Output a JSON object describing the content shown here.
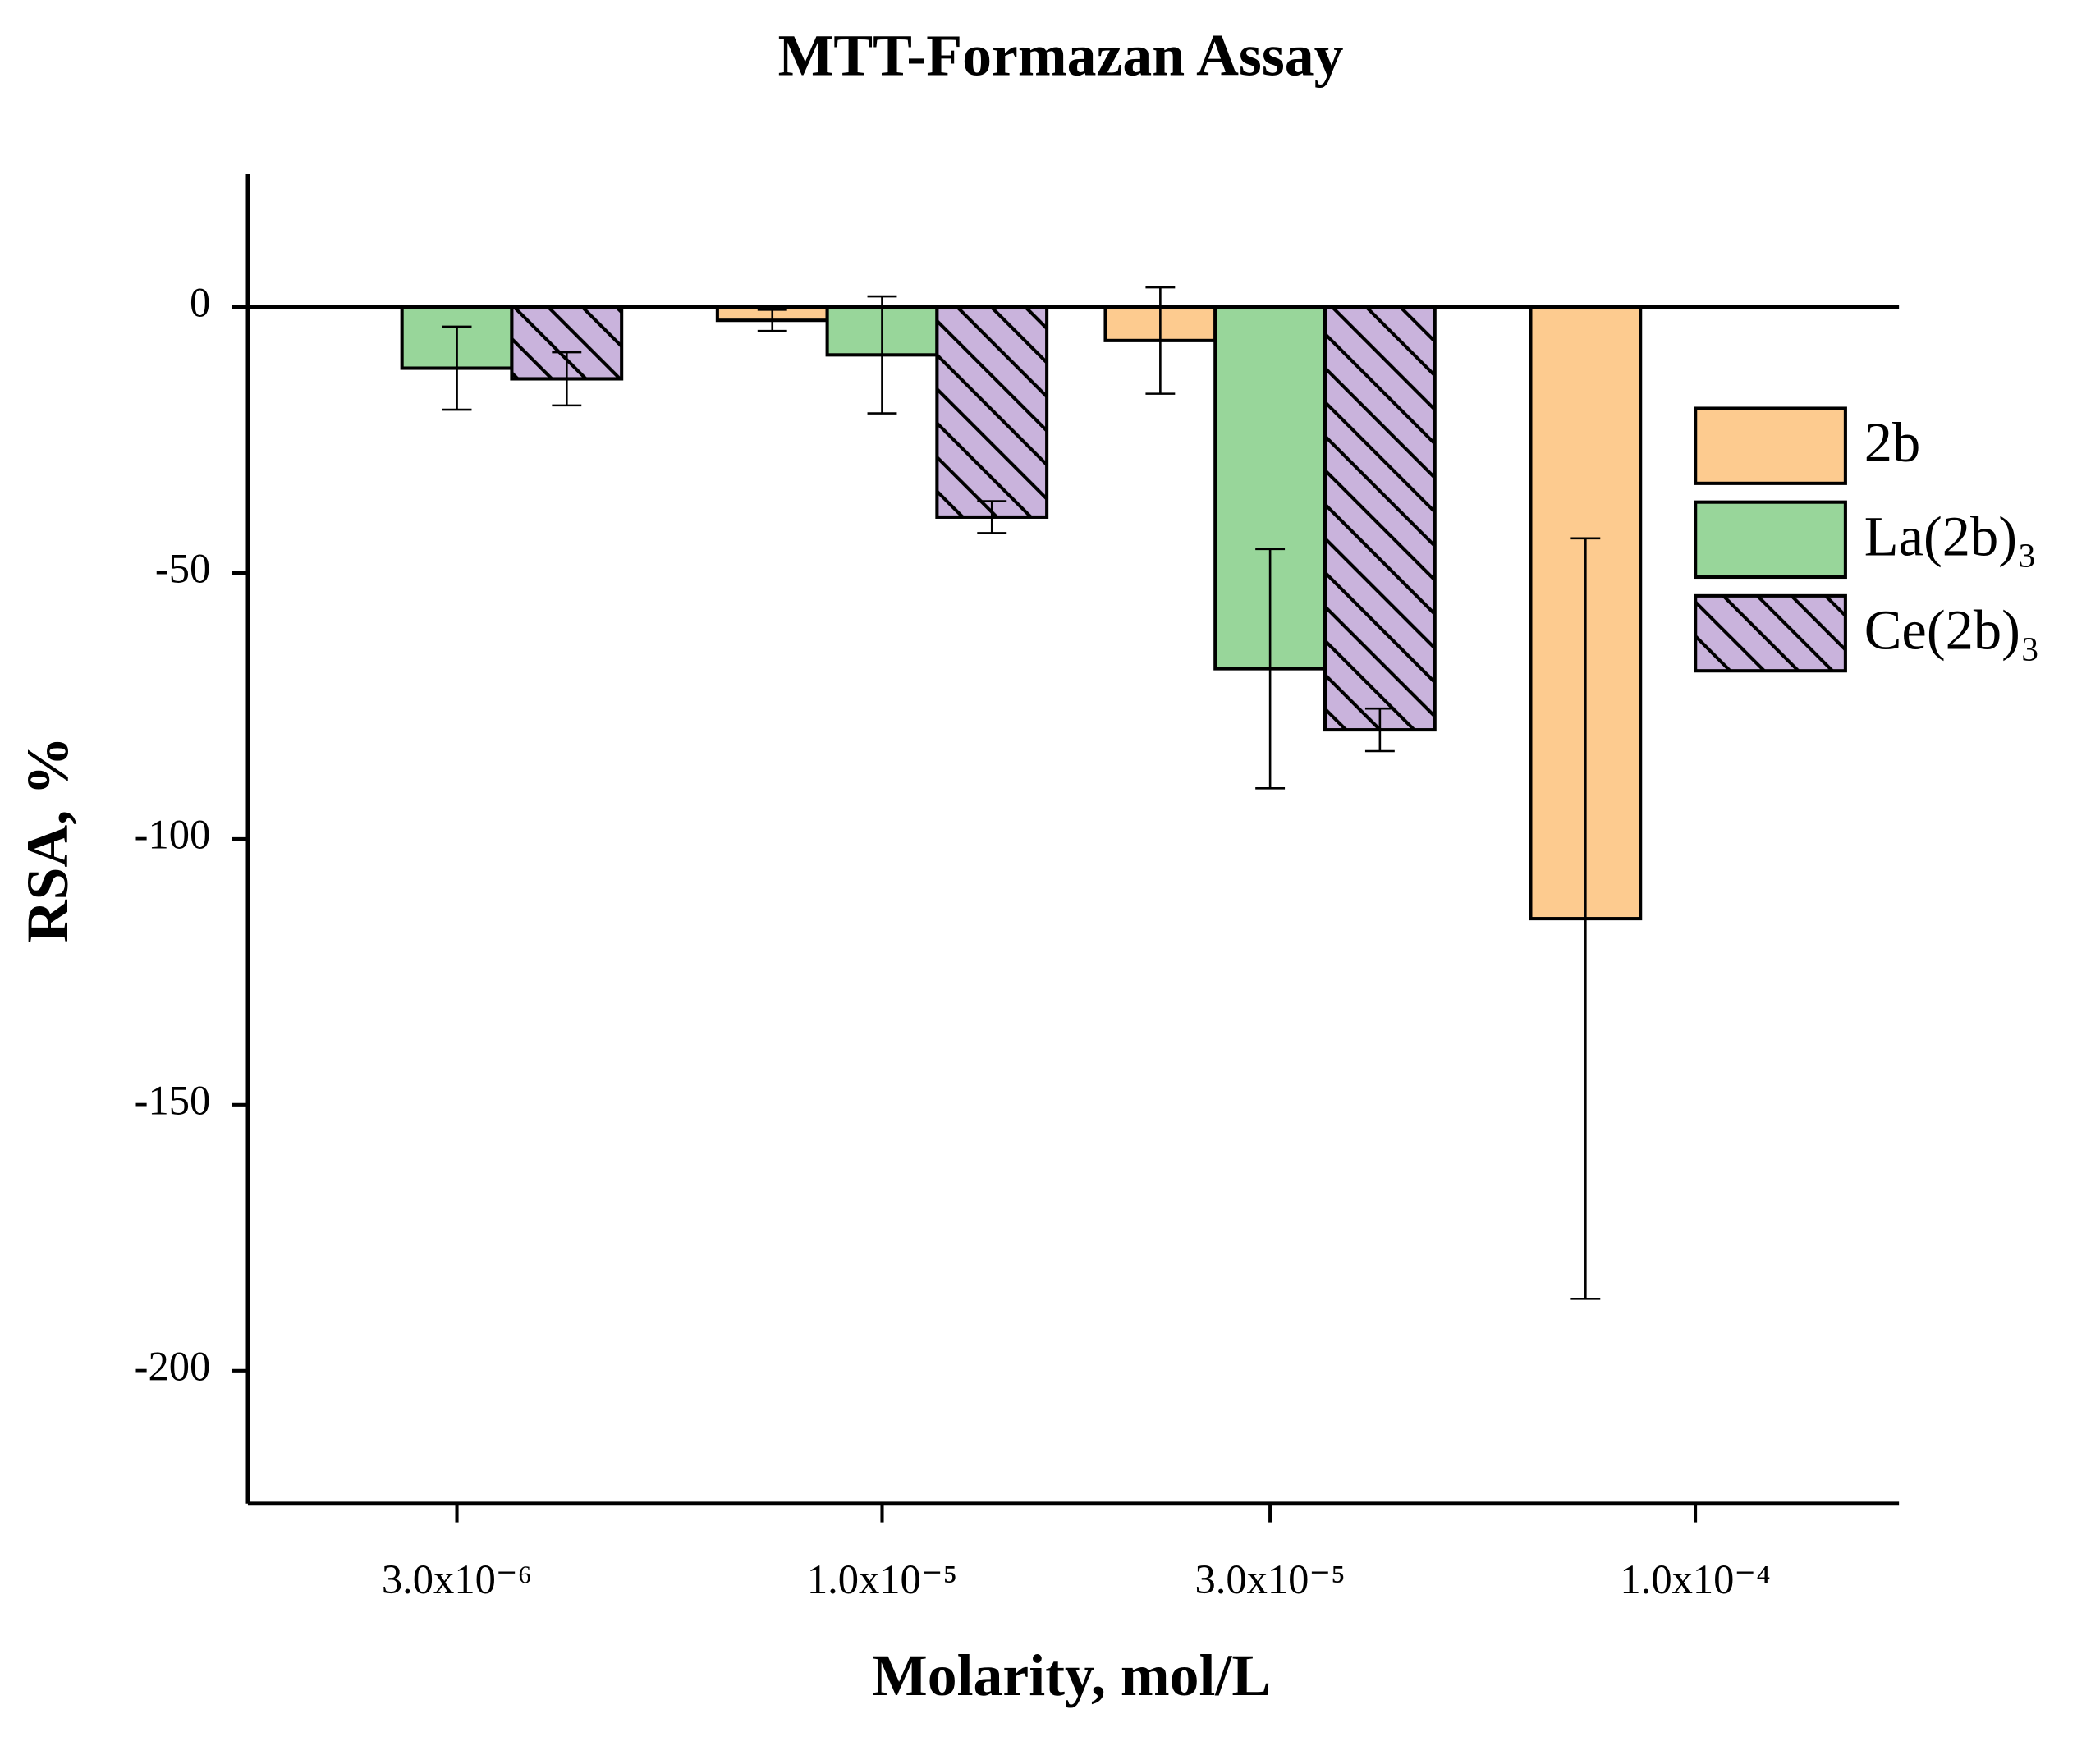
{
  "chart_data": {
    "type": "bar",
    "title": "MTT-Formazan Assay",
    "x_label": "Molarity, mol/L",
    "y_label": "RSA, %",
    "x": [
      3e-06,
      1e-05,
      3e-05,
      0.0001
    ],
    "xscale": "log",
    "xlim": [
      1.66e-06,
      0.000178
    ],
    "xticks": [
      {
        "value": 3e-06,
        "label": "3.0x10⁻⁶"
      },
      {
        "value": 1e-05,
        "label": "1.0x10⁻⁵"
      },
      {
        "value": 3e-05,
        "label": "3.0x10⁻⁵"
      },
      {
        "value": 0.0001,
        "label": "1.0x10⁻⁴"
      }
    ],
    "ylim": [
      -225,
      25
    ],
    "yticks": [
      0,
      -50,
      -100,
      -150,
      -200
    ],
    "legend": "right",
    "series": [
      {
        "name": "2b",
        "color": "#fdcb8f",
        "hatch": false,
        "values": [
          null,
          -2.5,
          -6.3,
          -115
        ],
        "errors": [
          null,
          2,
          10,
          71.5
        ]
      },
      {
        "name": "La(2b)₃",
        "color": "#98d69a",
        "hatch": false,
        "values": [
          -11.5,
          -9,
          -68,
          null
        ],
        "errors": [
          7.8,
          11,
          22.5,
          null
        ]
      },
      {
        "name": "Ce(2b)₃",
        "color": "#c9b3dc",
        "hatch": true,
        "values": [
          -13.5,
          -39.5,
          -79.5,
          null
        ],
        "errors": [
          5,
          3,
          4,
          null
        ]
      }
    ]
  }
}
